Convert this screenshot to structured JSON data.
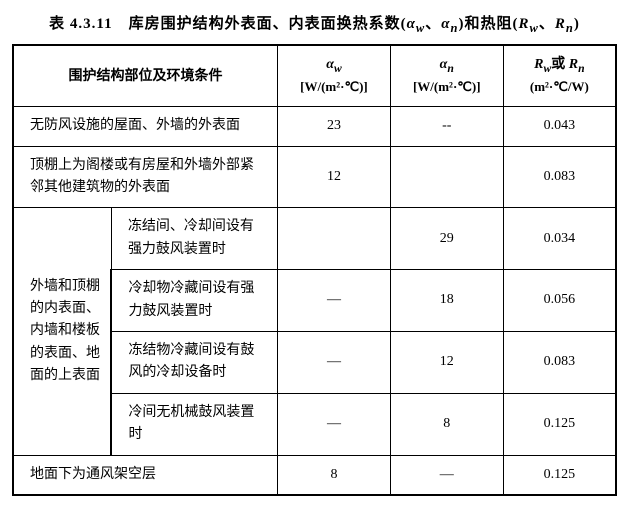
{
  "title_prefix": "表 4.3.11　库房围护结构外表面、内表面换热系数(",
  "title_mid1": "α",
  "title_sub1": "w",
  "title_comma1": "、",
  "title_mid2": "α",
  "title_sub2": "n",
  "title_mid3": ")和热阻(",
  "title_r1": "R",
  "title_rsub1": "w",
  "title_comma2": "、",
  "title_r2": "R",
  "title_rsub2": "n",
  "title_suffix": ")",
  "head": {
    "col1": "围护结构部位及环境条件",
    "col2_sym": "α",
    "col2_sub": "w",
    "col2_unit": "[W/(m²·℃)]",
    "col3_sym": "α",
    "col3_sub": "n",
    "col3_unit": "[W/(m²·℃)]",
    "col4_pre": "R",
    "col4_sub1": "w",
    "col4_mid": "或 ",
    "col4_sym2": "R",
    "col4_sub2": "n",
    "col4_unit": "(m²·℃/W)"
  },
  "rows": {
    "r1": {
      "desc": "无防风设施的屋面、外墙的外表面",
      "aw": "23",
      "an": "--",
      "r": "0.043"
    },
    "r2": {
      "desc": "顶棚上为阁楼或有房屋和外墙外部紧邻其他建筑物的外表面",
      "aw": "12",
      "an": "",
      "r": "0.083"
    },
    "group_label": "外墙和顶棚的内表面、内墙和楼板的表面、地面的上表面",
    "g1": {
      "desc": "冻结间、冷却间设有强力鼓风装置时",
      "aw": "",
      "an": "29",
      "r": "0.034"
    },
    "g2": {
      "desc": "冷却物冷藏间设有强力鼓风装置时",
      "aw": "—",
      "an": "18",
      "r": "0.056"
    },
    "g3": {
      "desc": "冻结物冷藏间设有鼓风的冷却设备时",
      "aw": "—",
      "an": "12",
      "r": "0.083"
    },
    "g4": {
      "desc": "冷间无机械鼓风装置时",
      "aw": "—",
      "an": "8",
      "r": "0.125"
    },
    "r7": {
      "desc": "地面下为通风架空层",
      "aw": "8",
      "an": "—",
      "r": "0.125"
    }
  }
}
